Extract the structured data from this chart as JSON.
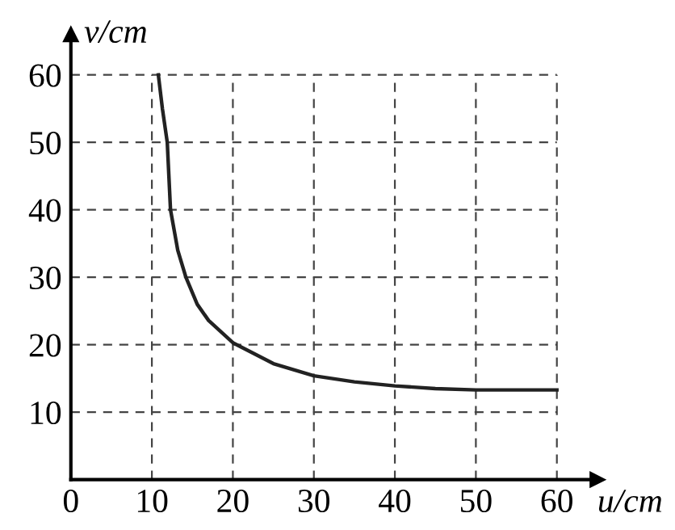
{
  "chart_data": {
    "type": "line",
    "xlabel": "u/cm",
    "ylabel": "v/cm",
    "series": [
      {
        "color": "#222222",
        "x": [
          10.8,
          11.3,
          11.9,
          12.3,
          13.2,
          14.2,
          15.6,
          17,
          20,
          25,
          30,
          35,
          40,
          45,
          50,
          55,
          60
        ],
        "values": [
          60,
          55,
          50,
          40,
          34,
          30,
          26,
          23.6,
          20.3,
          17.2,
          15.4,
          14.5,
          13.9,
          13.5,
          13.3,
          13.3,
          13.3
        ]
      }
    ],
    "xlim": [
      0,
      65
    ],
    "ylim": [
      0,
      66
    ],
    "xticks": [
      0,
      10,
      20,
      30,
      40,
      50,
      60
    ],
    "yticks": [
      10,
      20,
      30,
      40,
      50,
      60
    ],
    "grid": true,
    "marker": "none",
    "line_style": "solid"
  }
}
